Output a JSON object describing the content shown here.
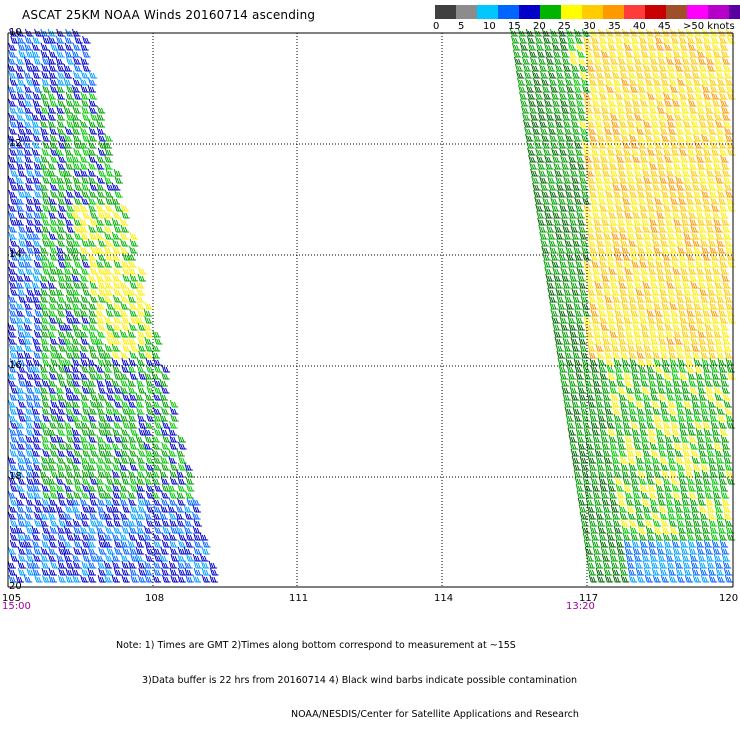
{
  "title": "ASCAT 25KM NOAA Winds 20160714 ascending",
  "legend": {
    "colors": [
      "#404040",
      "#8c8c8c",
      "#00c8ff",
      "#0064ff",
      "#0000c8",
      "#00b400",
      "#ffff00",
      "#ffcc00",
      "#ff9900",
      "#ff3c3c",
      "#c80000",
      "#a05028",
      "#ff00ff",
      "#b400c8",
      "#5a00a0"
    ],
    "labels": [
      "0",
      "5",
      "10",
      "15",
      "20",
      "25",
      "30",
      "35",
      "40",
      "45",
      ">50 knots"
    ]
  },
  "map": {
    "lat_labels": [
      "10",
      "12",
      "14",
      "16",
      "18",
      "20"
    ],
    "lon_labels": [
      "105",
      "108",
      "111",
      "114",
      "117",
      "120"
    ],
    "time_labels": [
      "15:00",
      "13:20"
    ]
  },
  "notes": {
    "line1": "Note: 1) Times are GMT 2)Times along bottom correspond to measurement at ~15S",
    "line2": "3)Data buffer is 22 hrs from 20160714 4) Black wind barbs indicate possible contamination",
    "line3": "NOAA/NESDIS/Center for Satellite Applications and Research"
  }
}
